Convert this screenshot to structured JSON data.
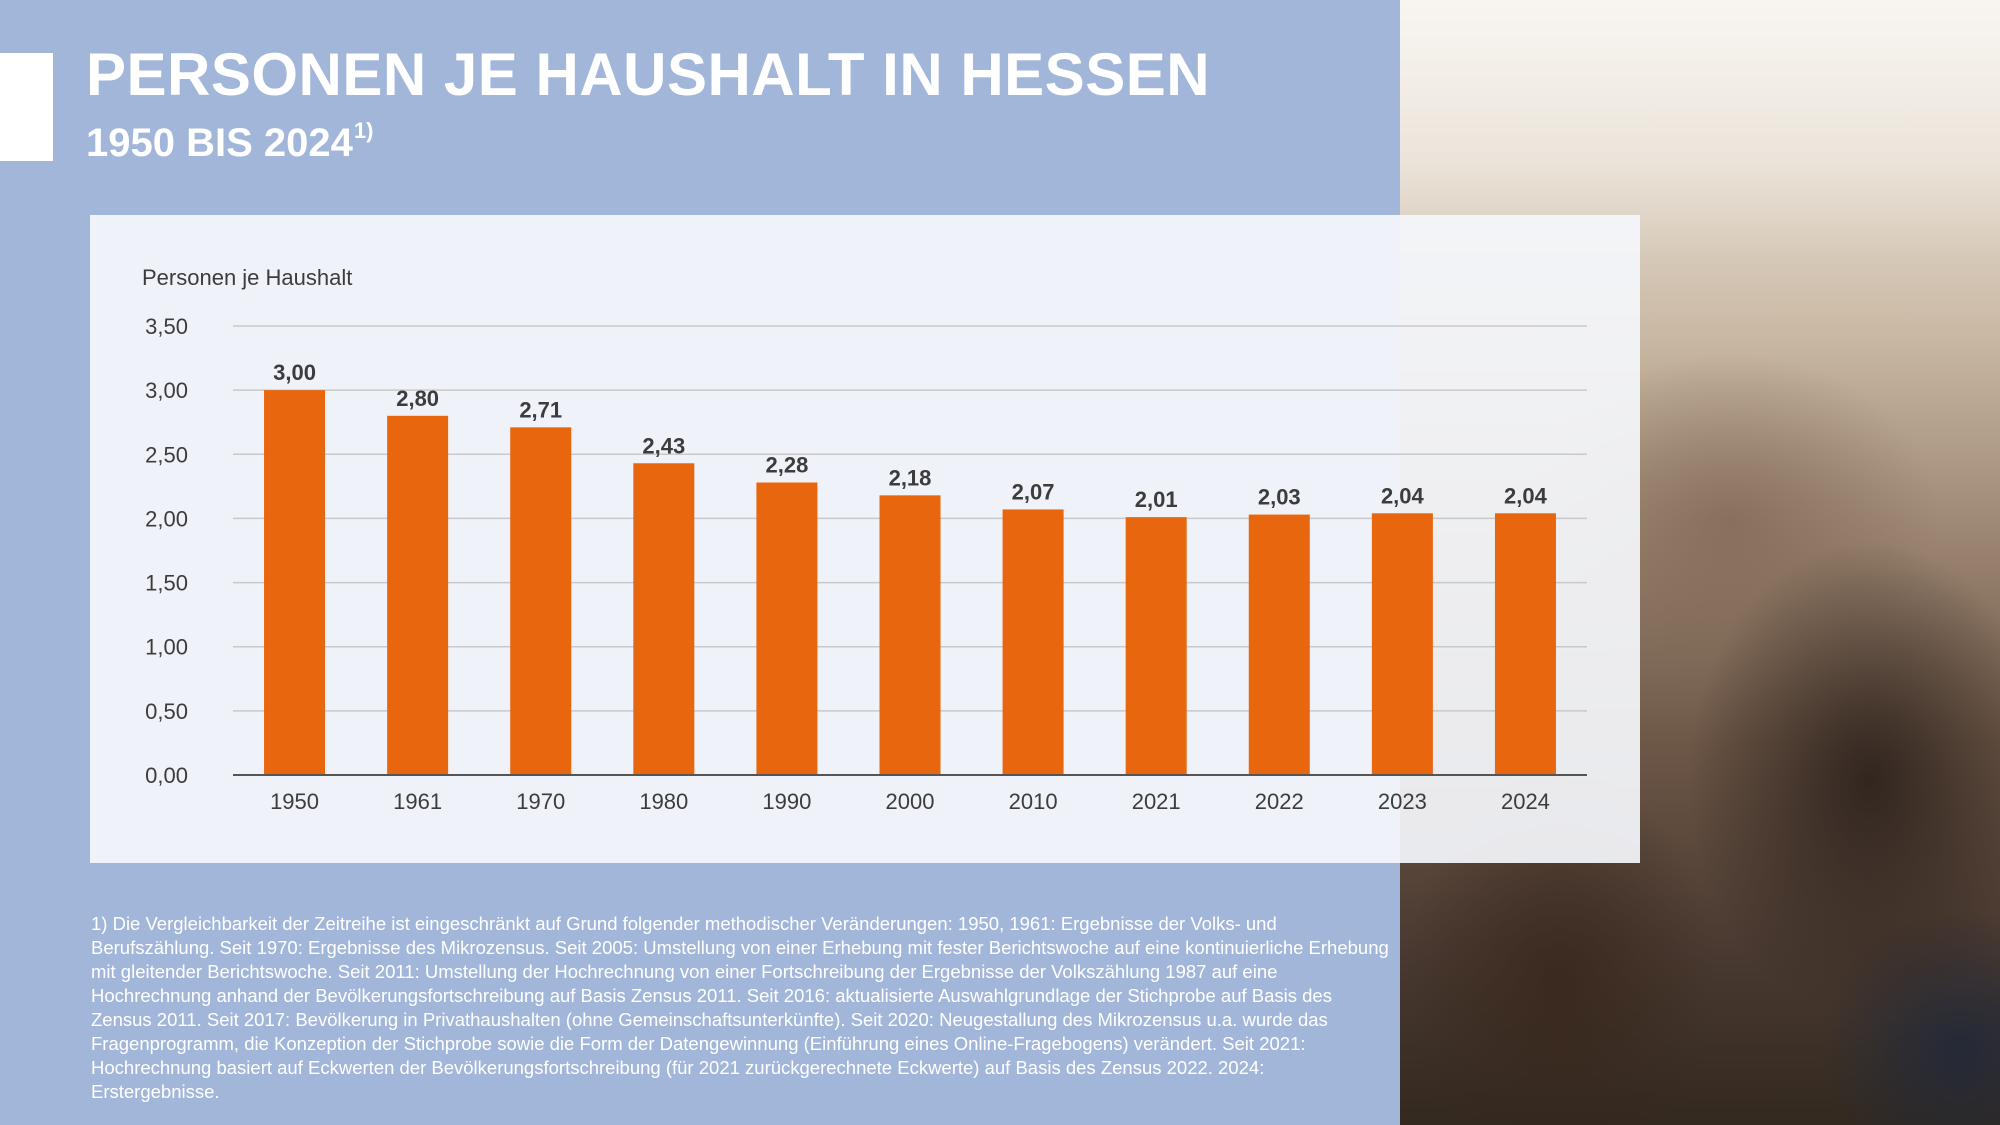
{
  "header": {
    "title": "PERSONEN JE HAUSHALT IN HESSEN",
    "subtitle": "1950 BIS 2024",
    "subtitle_note_marker": "1)"
  },
  "chart_data": {
    "type": "bar",
    "ylabel": "Personen je Haushalt",
    "categories": [
      "1950",
      "1961",
      "1970",
      "1980",
      "1990",
      "2000",
      "2010",
      "2021",
      "2022",
      "2023",
      "2024"
    ],
    "values": [
      3.0,
      2.8,
      2.71,
      2.43,
      2.28,
      2.18,
      2.07,
      2.01,
      2.03,
      2.04,
      2.04
    ],
    "value_labels": [
      "3,00",
      "2,80",
      "2,71",
      "2,43",
      "2,28",
      "2,18",
      "2,07",
      "2,01",
      "2,03",
      "2,04",
      "2,04"
    ],
    "ylim": [
      0,
      3.5
    ],
    "yticks": [
      0,
      0.5,
      1.0,
      1.5,
      2.0,
      2.5,
      3.0,
      3.5
    ],
    "ytick_labels": [
      "0,00",
      "0,50",
      "1,00",
      "1,50",
      "2,00",
      "2,50",
      "3,00",
      "3,50"
    ],
    "grid": true,
    "bar_color": "#e8660d"
  },
  "footnote": "1) Die Vergleichbarkeit der Zeitreihe ist eingeschränkt auf Grund folgender methodischer Veränderungen: 1950, 1961: Ergebnisse der Volks- und Berufszählung. Seit 1970: Ergebnisse des Mikrozensus. Seit 2005: Umstellung von einer Erhebung mit fester Berichtswoche auf eine kontinuierliche Erhebung mit gleitender Berichtswoche. Seit 2011: Umstellung der Hochrechnung von einer Fortschreibung der Ergebnisse der Volkszählung 1987 auf eine Hochrechnung anhand der Bevölkerungsfortschreibung auf Basis Zensus 2011. Seit 2016: aktualisierte Auswahlgrundlage der Stichprobe auf Basis des Zensus 2011. Seit 2017: Bevölkerung in Privathaushalten (ohne Gemeinschaftsunterkünfte). Seit 2020: Neugestallung des Mikrozensus u.a. wurde das Fragenprogramm, die Konzeption der Stichprobe sowie die Form der Datengewinnung (Einführung eines Online-Fragebogens) verändert. Seit 2021: Hochrechnung basiert auf Eckwerten der Bevölkerungsfortschreibung (für 2021 zurückgerechnete Eckwerte) auf Basis des Zensus 2022. 2024: Erstergebnisse."
}
